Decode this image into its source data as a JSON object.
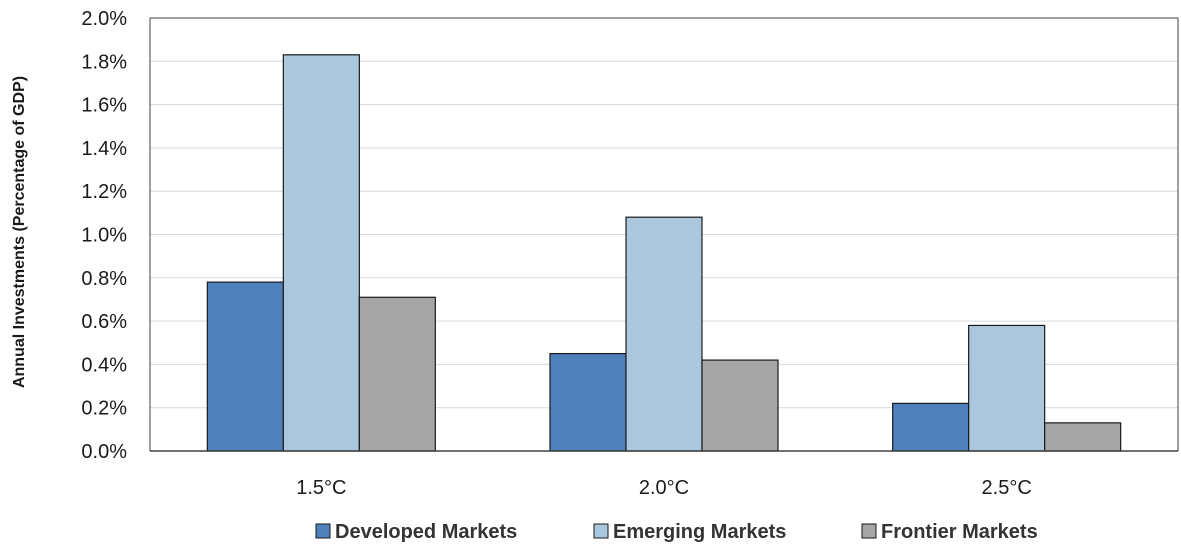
{
  "chart_data": {
    "type": "bar",
    "title": "",
    "xlabel": "",
    "ylabel": "Annual Investments (Percentage of GDP)",
    "categories": [
      "1.5°C",
      "2.0°C",
      "2.5°C"
    ],
    "ylim": [
      0,
      2.0
    ],
    "yticks": [
      0.0,
      0.2,
      0.4,
      0.6,
      0.8,
      1.0,
      1.2,
      1.4,
      1.6,
      1.8,
      2.0
    ],
    "ytick_labels": [
      "0.0%",
      "0.2%",
      "0.4%",
      "0.6%",
      "0.8%",
      "1.0%",
      "1.2%",
      "1.4%",
      "1.6%",
      "1.8%",
      "2.0%"
    ],
    "series": [
      {
        "name": "Developed Markets",
        "color": "#4f81bd",
        "values": [
          0.78,
          0.45,
          0.22
        ]
      },
      {
        "name": "Emerging Markets",
        "color": "#abc7de",
        "values": [
          1.83,
          1.08,
          0.58
        ]
      },
      {
        "name": "Frontier Markets",
        "color": "#a6a6a6",
        "values": [
          0.71,
          0.42,
          0.13
        ]
      }
    ],
    "grid": true,
    "legend_position": "bottom"
  }
}
